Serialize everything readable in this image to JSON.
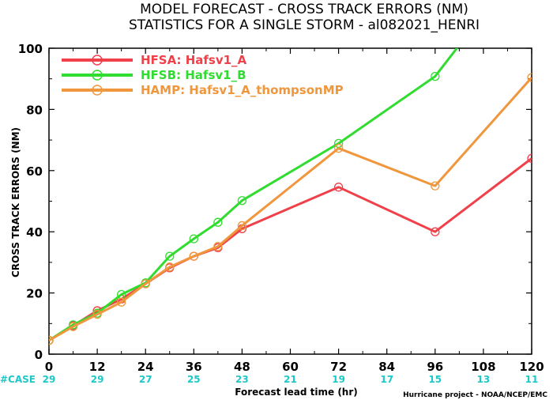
{
  "chart_data": {
    "type": "line",
    "title": "MODEL FORECAST - CROSS TRACK ERRORS (NM)",
    "subtitle": "STATISTICS FOR A SINGLE STORM - al082021_HENRI",
    "xlabel": "Forecast lead time (hr)",
    "ylabel": "CROSS TRACK ERRORS (NM)",
    "xlim": [
      0,
      120
    ],
    "ylim": [
      0,
      100
    ],
    "x_ticks": [
      "0",
      "12",
      "24",
      "36",
      "48",
      "60",
      "72",
      "84",
      "96",
      "108",
      "120"
    ],
    "y_ticks": [
      "0",
      "20",
      "40",
      "60",
      "80",
      "100"
    ],
    "legend_position": "top-left",
    "grid": false,
    "series": [
      {
        "name": "HFSA: Hafsv1_A",
        "color": "#f0404a",
        "x": [
          0,
          6,
          12,
          18,
          24,
          30,
          36,
          42,
          48,
          72,
          96,
          120
        ],
        "y": [
          4.5,
          9.3,
          14.2,
          18.0,
          23.0,
          28.2,
          32.0,
          34.8,
          41.0,
          54.6,
          40.0,
          64.0
        ]
      },
      {
        "name": "HFSB: Hafsv1_B",
        "color": "#30dc30",
        "x": [
          0,
          6,
          12,
          18,
          24,
          30,
          36,
          42,
          48,
          72,
          96,
          102
        ],
        "y": [
          4.5,
          9.6,
          13.4,
          19.5,
          23.3,
          32.0,
          37.7,
          43.1,
          50.2,
          68.9,
          90.8,
          101
        ]
      },
      {
        "name": "HAMP: Hafsv1_A_thompsonMP",
        "color": "#f0963c",
        "x": [
          0,
          6,
          12,
          18,
          24,
          30,
          36,
          42,
          48,
          72,
          96,
          120
        ],
        "y": [
          4.5,
          9.0,
          13.0,
          17.0,
          23.0,
          28.5,
          32.0,
          35.2,
          42.0,
          67.3,
          55.0,
          90.4
        ]
      }
    ],
    "case_label": "#CASE",
    "case_counts": [
      "29",
      "29",
      "27",
      "25",
      "23",
      "21",
      "19",
      "17",
      "15",
      "13",
      "11"
    ],
    "credit": "Hurricane project - NOAA/NCEP/EMC",
    "colors": {
      "axis": "#000000",
      "case": "#1ec8c8",
      "marker_fill": "#ffffff"
    }
  }
}
